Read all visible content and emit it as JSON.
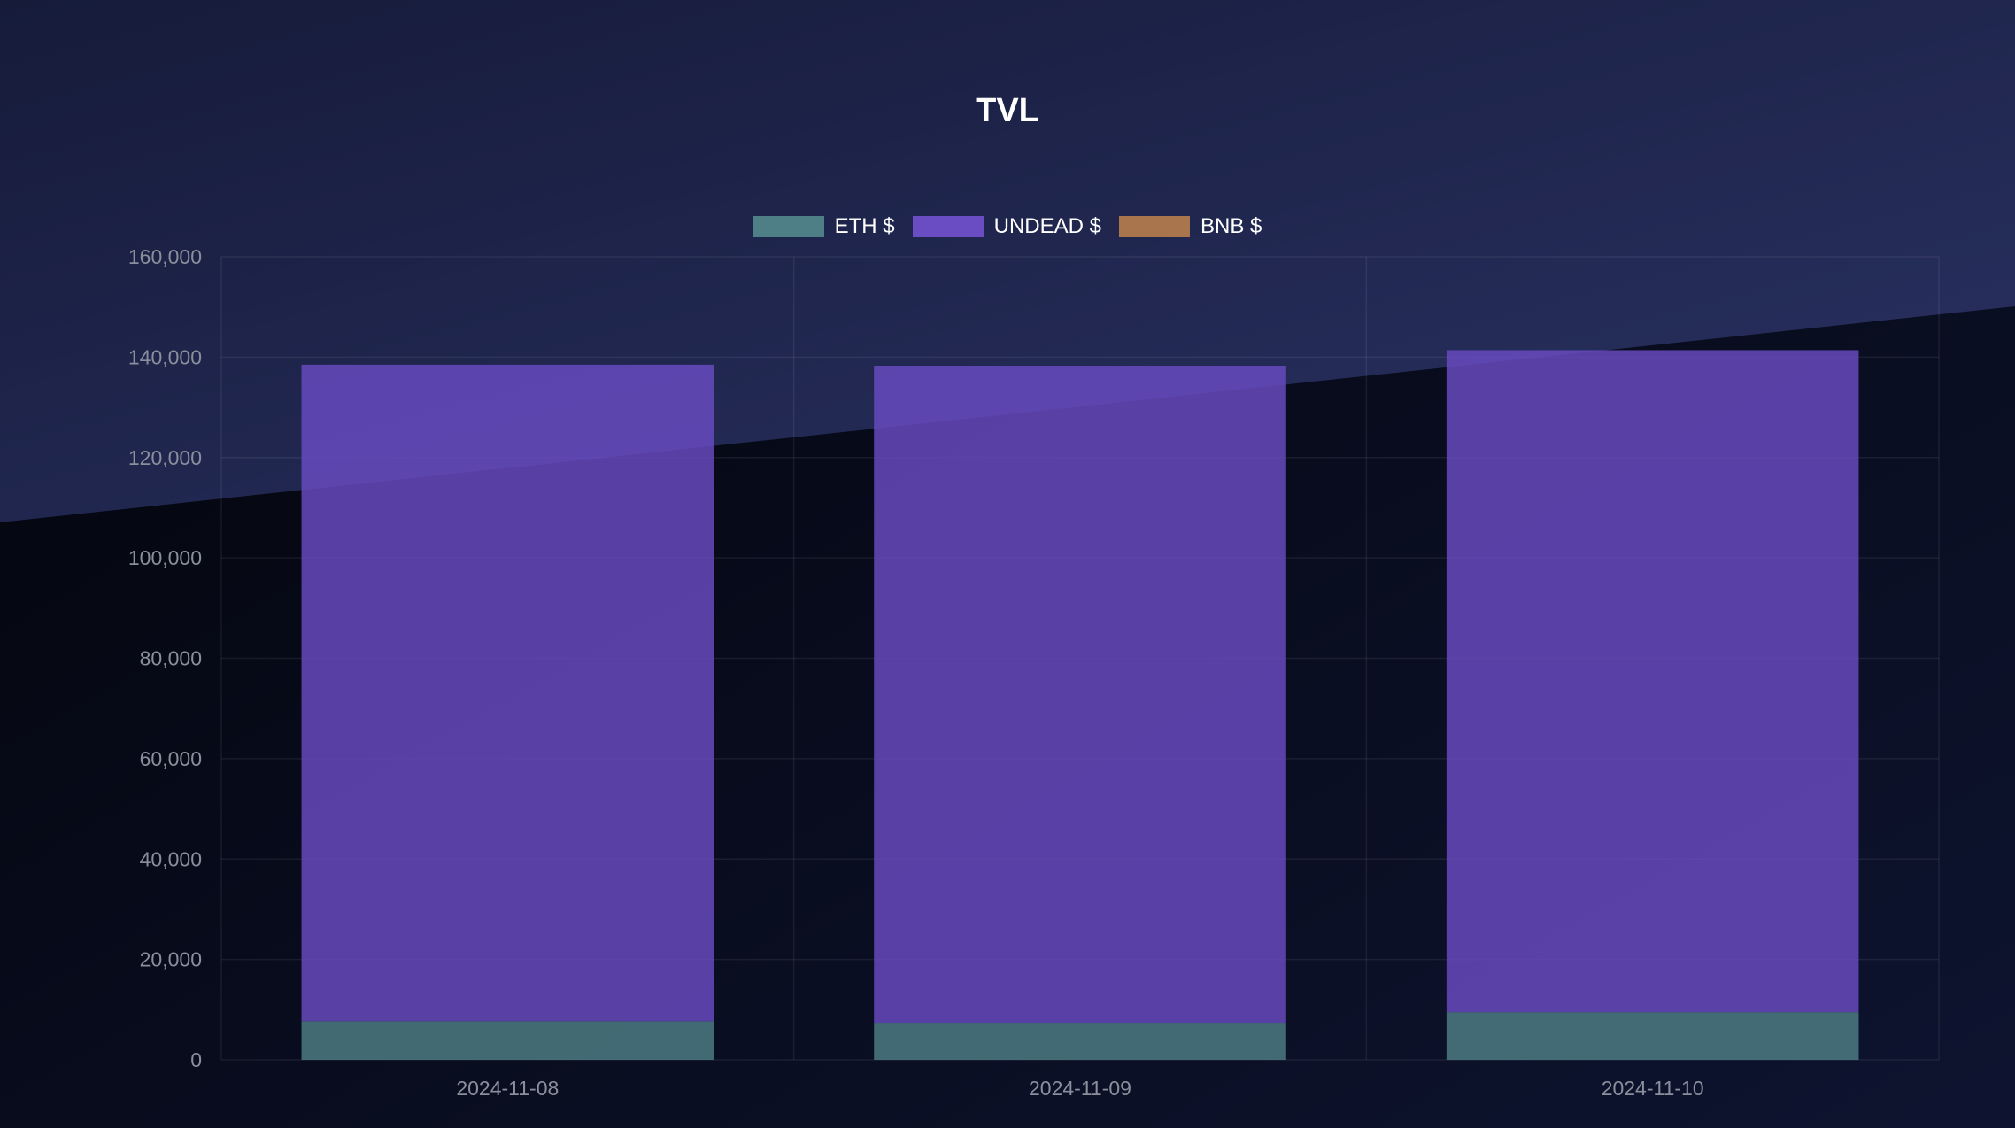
{
  "chart_data": {
    "type": "bar",
    "stacked": true,
    "title": "TVL",
    "categories": [
      "2024-11-08",
      "2024-11-09",
      "2024-11-10"
    ],
    "series": [
      {
        "name": "ETH $",
        "color": "#4e7f86",
        "values": [
          7700,
          7400,
          9500
        ]
      },
      {
        "name": "UNDEAD $",
        "color": "#6a4cc3",
        "values": [
          130800,
          130900,
          131900
        ]
      },
      {
        "name": "BNB $",
        "color": "#a8754d",
        "values": [
          0,
          0,
          0
        ]
      }
    ],
    "ylim": [
      0,
      160000
    ],
    "yticks": [
      "0",
      "20,000",
      "40,000",
      "60,000",
      "80,000",
      "100,000",
      "120,000",
      "140,000",
      "160,000"
    ],
    "grid": true,
    "legend": "top"
  }
}
